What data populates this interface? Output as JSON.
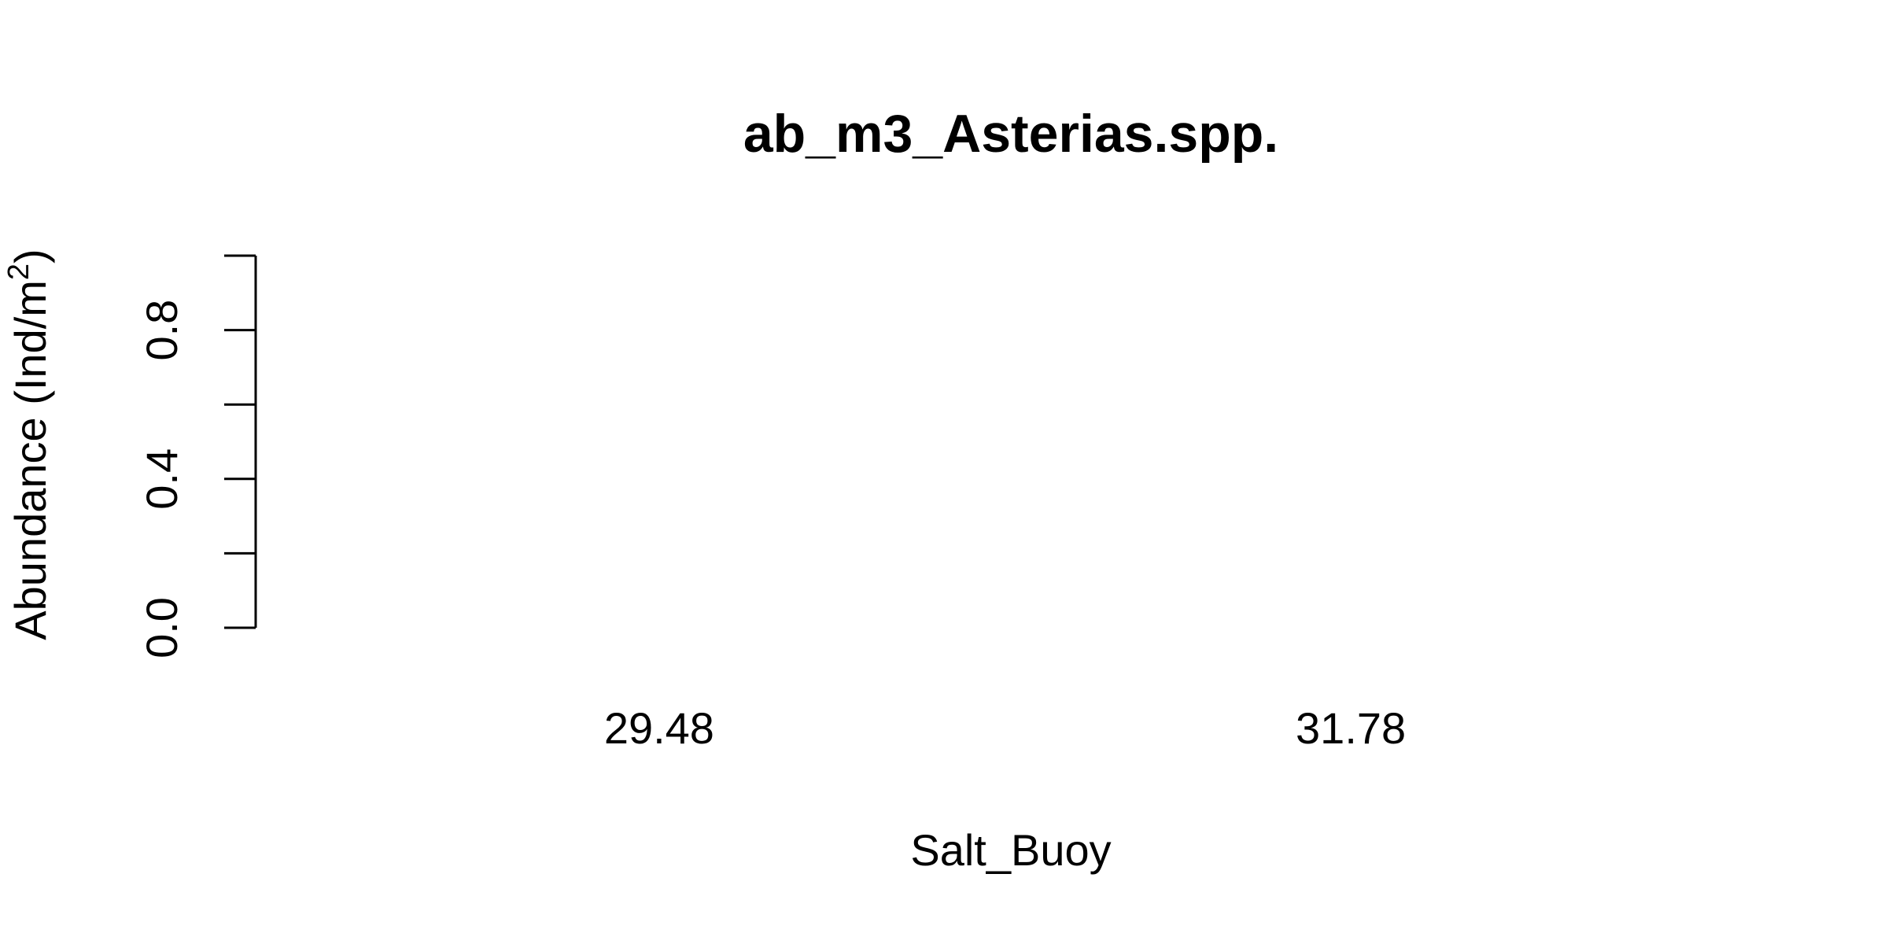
{
  "chart_data": {
    "type": "bar",
    "title": "ab_m3_Asterias.spp.",
    "xlabel": "Salt_Buoy",
    "ylabel_main": "Abundance (Ind/m",
    "ylabel_sup": "2",
    "ylabel_close": ")",
    "categories": [
      "29.48",
      "31.78"
    ],
    "values": [
      0,
      0
    ],
    "ylim": [
      0,
      1
    ],
    "yticks": [
      0.0,
      0.2,
      0.4,
      0.6,
      0.8,
      1.0
    ],
    "ytick_labels": [
      "0.0",
      "0.4",
      "0.8"
    ],
    "ytick_label_values": [
      0.0,
      0.4,
      0.8
    ],
    "grid": false,
    "legend": "none",
    "bar_color": "#bebebe"
  }
}
